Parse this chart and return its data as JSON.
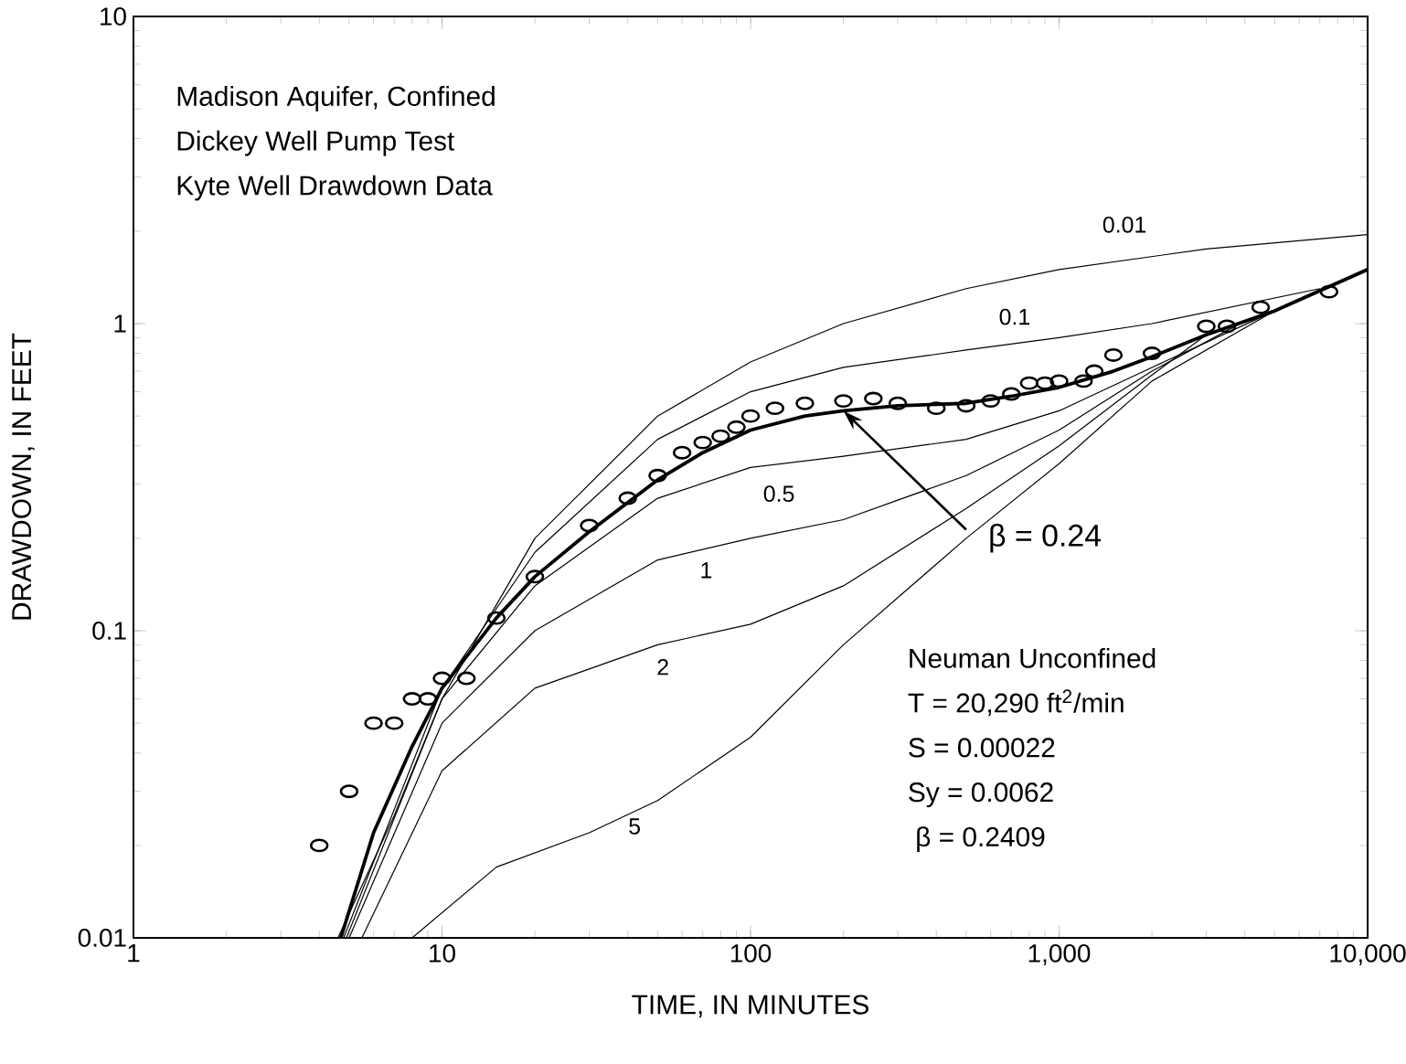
{
  "chart_data": {
    "type": "line",
    "xlabel": "TIME, IN MINUTES",
    "ylabel": "DRAWDOWN, IN FEET",
    "log": "xy",
    "line_style": "solid",
    "xlim": [
      1,
      10000
    ],
    "ylim": [
      0.01,
      10
    ],
    "xticks": [
      1,
      10,
      100,
      {
        "value": 1000,
        "label": "1,000"
      },
      {
        "value": 10000,
        "label": "10,000"
      }
    ],
    "yticks": [
      0.01,
      0.1,
      1,
      10
    ],
    "series": [
      {
        "color": "#000000",
        "x": [
          4.7,
          6,
          8,
          10,
          15,
          20,
          30,
          50,
          70,
          100,
          150,
          200,
          300,
          500,
          700,
          1000,
          1500,
          2000,
          3000,
          5000,
          10000
        ],
        "values": [
          0.01,
          0.022,
          0.042,
          0.065,
          0.11,
          0.15,
          0.21,
          0.31,
          0.38,
          0.45,
          0.5,
          0.52,
          0.54,
          0.55,
          0.58,
          0.62,
          0.7,
          0.78,
          0.92,
          1.1,
          1.5
        ]
      },
      {
        "name": "0.01",
        "color": "#000000",
        "x": [
          4.6,
          7,
          10,
          20,
          50,
          100,
          200,
          500,
          1000,
          3000,
          10000
        ],
        "values": [
          0.01,
          0.025,
          0.06,
          0.2,
          0.5,
          0.75,
          1.0,
          1.3,
          1.5,
          1.75,
          1.95
        ]
      },
      {
        "name": "0.1",
        "color": "#000000",
        "x": [
          4.8,
          10,
          20,
          50,
          100,
          200,
          500,
          1000,
          2000,
          7000
        ],
        "values": [
          0.01,
          0.065,
          0.18,
          0.42,
          0.6,
          0.72,
          0.82,
          0.9,
          1.0,
          1.3
        ]
      },
      {
        "name": "0.5",
        "color": "#000000",
        "x": [
          4.9,
          10,
          20,
          50,
          100,
          200,
          500,
          1000,
          2000,
          5000
        ],
        "values": [
          0.01,
          0.06,
          0.14,
          0.27,
          0.34,
          0.37,
          0.42,
          0.52,
          0.72,
          1.1
        ]
      },
      {
        "name": "1",
        "color": "#000000",
        "x": [
          5,
          10,
          20,
          50,
          100,
          200,
          500,
          1000,
          2000,
          4000
        ],
        "values": [
          0.01,
          0.05,
          0.1,
          0.17,
          0.2,
          0.23,
          0.32,
          0.45,
          0.7,
          1.02
        ]
      },
      {
        "name": "2",
        "color": "#000000",
        "x": [
          5.5,
          10,
          20,
          50,
          100,
          200,
          500,
          1000,
          2000,
          3000
        ],
        "values": [
          0.01,
          0.035,
          0.065,
          0.09,
          0.105,
          0.14,
          0.25,
          0.4,
          0.68,
          0.92
        ]
      },
      {
        "name": "5",
        "color": "#000000",
        "x": [
          8,
          15,
          30,
          50,
          100,
          200,
          500,
          1000,
          2000,
          5000,
          10000
        ],
        "values": [
          0.01,
          0.017,
          0.022,
          0.028,
          0.045,
          0.09,
          0.2,
          0.35,
          0.65,
          1.1,
          1.5
        ]
      },
      {
        "type": "scatter",
        "marker": "circle",
        "color": "#000000",
        "x": [
          4,
          5,
          6,
          7,
          8,
          9,
          10,
          12,
          15,
          20,
          30,
          40,
          50,
          60,
          70,
          80,
          90,
          100,
          120,
          150,
          200,
          250,
          300,
          400,
          500,
          600,
          700,
          800,
          900,
          1000,
          1200,
          1300,
          1500,
          2000,
          3000,
          3500,
          4500,
          7500
        ],
        "values": [
          0.02,
          0.03,
          0.05,
          0.05,
          0.06,
          0.06,
          0.07,
          0.07,
          0.11,
          0.15,
          0.22,
          0.27,
          0.32,
          0.38,
          0.41,
          0.43,
          0.46,
          0.5,
          0.53,
          0.55,
          0.56,
          0.57,
          0.55,
          0.53,
          0.54,
          0.56,
          0.59,
          0.64,
          0.64,
          0.65,
          0.65,
          0.7,
          0.79,
          0.8,
          0.98,
          0.98,
          1.13,
          1.27
        ]
      }
    ],
    "annotations": [
      {
        "text": "β = 0.24",
        "x": 200,
        "y": 0.52
      },
      "Madison Aquifer, Confined",
      "Dickey  Well Pump Test",
      "Kyte Well  Drawdown Data",
      "Neuman Unconfined",
      "T   =  20,290 ft$^{2}$/min",
      "S   =  0.00022",
      "Sy  =  0.0062",
      " β  =  0.2409"
    ]
  }
}
